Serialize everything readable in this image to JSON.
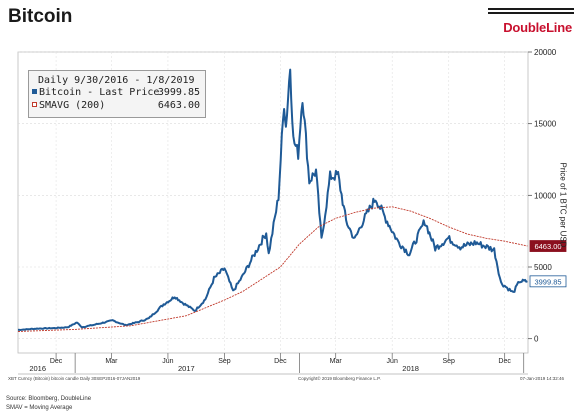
{
  "page": {
    "title": "Bitcoin",
    "brand": "DoubleLine"
  },
  "legend": {
    "header": "Daily 9/30/2016 - 1/8/2019",
    "items": [
      {
        "label": "Bitcoin - Last Price",
        "value": "3999.85",
        "color": "#1f5a96"
      },
      {
        "label": "SMAVG (200)",
        "value": "6463.00",
        "color": "#c0392b"
      }
    ]
  },
  "footer": {
    "bottom_left": "XBT Curncy (Bitcoin) bitcoin candle  Daily 30SEP2016-07JAN2019",
    "bottom_center": "Copyright© 2019 Bloomberg Finance L.P.",
    "bottom_right": "07-Jan-2019 14:32:46",
    "source": "Source: Bloomberg, DoubleLine",
    "note": "SMAV = Moving Average"
  },
  "chart_data": {
    "type": "line",
    "title": "Bitcoin",
    "ylabel": "Price of 1 BTC per USD",
    "ylim": [
      -1000,
      20000
    ],
    "yticks": [
      0,
      5000,
      10000,
      15000,
      20000
    ],
    "xlim": [
      "2016-09-30",
      "2019-01-08"
    ],
    "x_ticks": [
      {
        "date": "2016-12-01",
        "label": "Dec"
      },
      {
        "date": "2017-03-01",
        "label": "Mar"
      },
      {
        "date": "2017-06-01",
        "label": "Jun"
      },
      {
        "date": "2017-09-01",
        "label": "Sep"
      },
      {
        "date": "2017-12-01",
        "label": "Dec"
      },
      {
        "date": "2018-03-01",
        "label": "Mar"
      },
      {
        "date": "2018-06-01",
        "label": "Jun"
      },
      {
        "date": "2018-09-01",
        "label": "Sep"
      },
      {
        "date": "2018-12-01",
        "label": "Dec"
      }
    ],
    "years": [
      {
        "date": "2016-11-01",
        "label": "2016"
      },
      {
        "date": "2017-07-01",
        "label": "2017"
      },
      {
        "date": "2018-07-01",
        "label": "2018"
      }
    ],
    "series": [
      {
        "name": "Bitcoin - Last Price",
        "color": "#1f5a96",
        "last_label": "3999.85",
        "points": [
          [
            "2016-09-30",
            610
          ],
          [
            "2016-10-31",
            700
          ],
          [
            "2016-11-30",
            740
          ],
          [
            "2016-12-20",
            800
          ],
          [
            "2017-01-04",
            1130
          ],
          [
            "2017-01-12",
            800
          ],
          [
            "2017-02-01",
            970
          ],
          [
            "2017-03-03",
            1270
          ],
          [
            "2017-03-24",
            940
          ],
          [
            "2017-04-15",
            1180
          ],
          [
            "2017-05-01",
            1420
          ],
          [
            "2017-05-25",
            2400
          ],
          [
            "2017-06-05",
            2700
          ],
          [
            "2017-06-12",
            2950
          ],
          [
            "2017-06-25",
            2500
          ],
          [
            "2017-07-15",
            1950
          ],
          [
            "2017-08-01",
            2750
          ],
          [
            "2017-08-15",
            4200
          ],
          [
            "2017-09-01",
            4900
          ],
          [
            "2017-09-15",
            3300
          ],
          [
            "2017-10-01",
            4400
          ],
          [
            "2017-10-20",
            5900
          ],
          [
            "2017-11-08",
            7400
          ],
          [
            "2017-11-12",
            5900
          ],
          [
            "2017-11-28",
            9900
          ],
          [
            "2017-12-07",
            16500
          ],
          [
            "2017-12-10",
            14800
          ],
          [
            "2017-12-17",
            19000
          ],
          [
            "2017-12-22",
            13900
          ],
          [
            "2017-12-30",
            12900
          ],
          [
            "2018-01-06",
            17000
          ],
          [
            "2018-01-17",
            11000
          ],
          [
            "2018-01-28",
            11700
          ],
          [
            "2018-02-06",
            6900
          ],
          [
            "2018-02-20",
            11300
          ],
          [
            "2018-03-05",
            11400
          ],
          [
            "2018-03-18",
            8200
          ],
          [
            "2018-04-01",
            6900
          ],
          [
            "2018-04-12",
            8000
          ],
          [
            "2018-05-05",
            9800
          ],
          [
            "2018-05-20",
            8500
          ],
          [
            "2018-06-10",
            6800
          ],
          [
            "2018-06-29",
            5900
          ],
          [
            "2018-07-24",
            8200
          ],
          [
            "2018-08-10",
            6300
          ],
          [
            "2018-08-31",
            7000
          ],
          [
            "2018-09-20",
            6400
          ],
          [
            "2018-10-15",
            6700
          ],
          [
            "2018-11-14",
            6200
          ],
          [
            "2018-11-25",
            3900
          ],
          [
            "2018-12-15",
            3200
          ],
          [
            "2018-12-25",
            4000
          ],
          [
            "2019-01-07",
            4000
          ]
        ]
      },
      {
        "name": "SMAVG (200)",
        "color": "#c0392b",
        "last_label": "6463.00",
        "points": [
          [
            "2016-09-30",
            500
          ],
          [
            "2017-01-01",
            650
          ],
          [
            "2017-04-01",
            900
          ],
          [
            "2017-07-01",
            1600
          ],
          [
            "2017-09-01",
            2700
          ],
          [
            "2017-10-01",
            3300
          ],
          [
            "2017-12-01",
            5000
          ],
          [
            "2018-01-01",
            6600
          ],
          [
            "2018-02-01",
            7800
          ],
          [
            "2018-03-01",
            8400
          ],
          [
            "2018-04-01",
            8800
          ],
          [
            "2018-05-01",
            9100
          ],
          [
            "2018-06-01",
            9200
          ],
          [
            "2018-07-01",
            8900
          ],
          [
            "2018-08-01",
            8400
          ],
          [
            "2018-09-01",
            7800
          ],
          [
            "2018-10-01",
            7300
          ],
          [
            "2018-11-01",
            7000
          ],
          [
            "2018-12-01",
            6800
          ],
          [
            "2019-01-07",
            6463
          ]
        ]
      }
    ]
  }
}
